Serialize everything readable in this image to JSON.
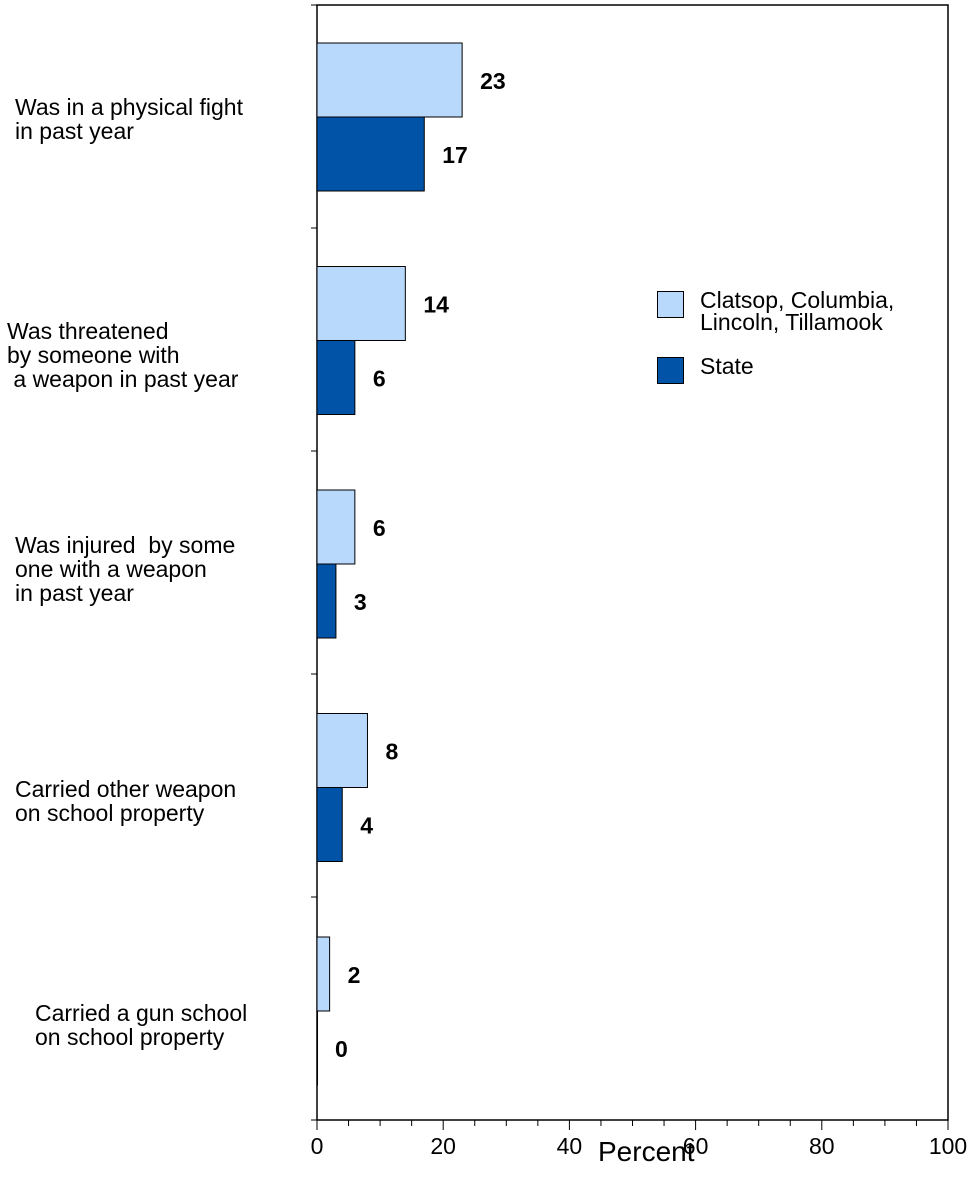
{
  "chart_data": {
    "type": "bar",
    "orientation": "horizontal",
    "categories": [
      "Was in a physical fight\nin past year",
      "Was threatened\nby someone with\n a weapon in past year",
      "Was injured  by some\none with a weapon\nin past year",
      "Carried other weapon\non school property",
      "Carried a gun school\non school property"
    ],
    "series": [
      {
        "name": "Clatsop, Columbia,\nLincoln, Tillamook",
        "color": "#b8d9fb",
        "values": [
          23,
          14,
          6,
          8,
          2
        ]
      },
      {
        "name": "State",
        "color": "#0053a6",
        "values": [
          17,
          6,
          3,
          4,
          0
        ]
      }
    ],
    "data_labels": [
      [
        "23",
        "14",
        "6",
        "8",
        "2"
      ],
      [
        "17",
        "6",
        "3",
        "4",
        "0"
      ]
    ],
    "xlabel": "Percent",
    "xlim": [
      0,
      100
    ],
    "x_ticks": [
      "0",
      "20",
      "40",
      "60",
      "80",
      "100"
    ],
    "grid": false,
    "legend_position": "right"
  }
}
